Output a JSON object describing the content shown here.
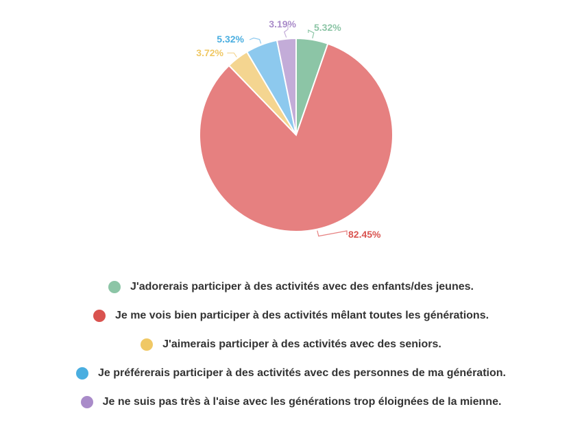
{
  "chart_data": {
    "type": "pie",
    "title": "",
    "series": [
      {
        "name": "J'adorerais participer à des activités avec des enfants/des jeunes.",
        "value": 5.32,
        "label": "5.32%",
        "color": "#8cc5a6",
        "label_color": "#8cc5a6"
      },
      {
        "name": "Je me vois bien participer à des activités mêlant toutes les générations.",
        "value": 82.45,
        "label": "82.45%",
        "color": "#e68080",
        "label_color": "#d9534f"
      },
      {
        "name": "J'aimerais participer à des activités avec des seniors.",
        "value": 3.72,
        "label": "3.72%",
        "color": "#f4d590",
        "label_color": "#f0c865"
      },
      {
        "name": "Je préférerais participer à des activités avec des personnes de ma génération.",
        "value": 5.32,
        "label": "5.32%",
        "color": "#8dc9ee",
        "label_color": "#4aaee0"
      },
      {
        "name": "Je ne suis pas très à l'aise avec les générations trop éloignées de la mienne.",
        "value": 3.19,
        "label": "3.19%",
        "color": "#c3acd8",
        "label_color": "#a98bc9"
      }
    ],
    "legend_placement": "bottom",
    "legend_dot_colors": [
      "#8cc5a6",
      "#d9534f",
      "#f0c865",
      "#4aaee0",
      "#a98bc9"
    ]
  }
}
